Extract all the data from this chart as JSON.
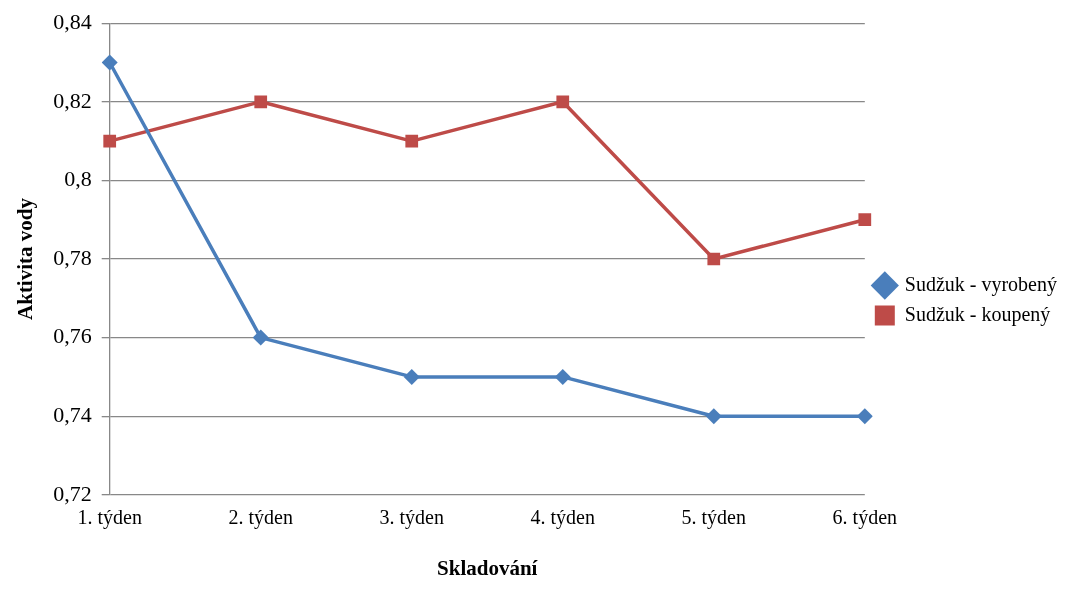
{
  "chart_data": {
    "type": "line",
    "xlabel": "Skladování",
    "ylabel": "Aktivita vody",
    "categories": [
      "1. týden",
      "2. týden",
      "3. týden",
      "4. týden",
      "5. týden",
      "6. týden"
    ],
    "series": [
      {
        "name": "Sudžuk - vyrobený",
        "color": "#4a7ebb",
        "marker": "diamond",
        "values": [
          0.83,
          0.76,
          0.75,
          0.75,
          0.74,
          0.74
        ]
      },
      {
        "name": "Sudžuk - koupený",
        "color": "#be4b48",
        "marker": "square",
        "values": [
          0.81,
          0.82,
          0.81,
          0.82,
          0.78,
          0.79
        ]
      }
    ],
    "ylim": [
      0.72,
      0.84
    ],
    "yticks": [
      {
        "value": 0.72,
        "label": "0,72"
      },
      {
        "value": 0.74,
        "label": "0,74"
      },
      {
        "value": 0.76,
        "label": "0,76"
      },
      {
        "value": 0.78,
        "label": "0,78"
      },
      {
        "value": 0.8,
        "label": "0,8"
      },
      {
        "value": 0.82,
        "label": "0,82"
      },
      {
        "value": 0.84,
        "label": "0,84"
      }
    ],
    "grid": "y",
    "legend": "right",
    "line_style": "solid"
  }
}
